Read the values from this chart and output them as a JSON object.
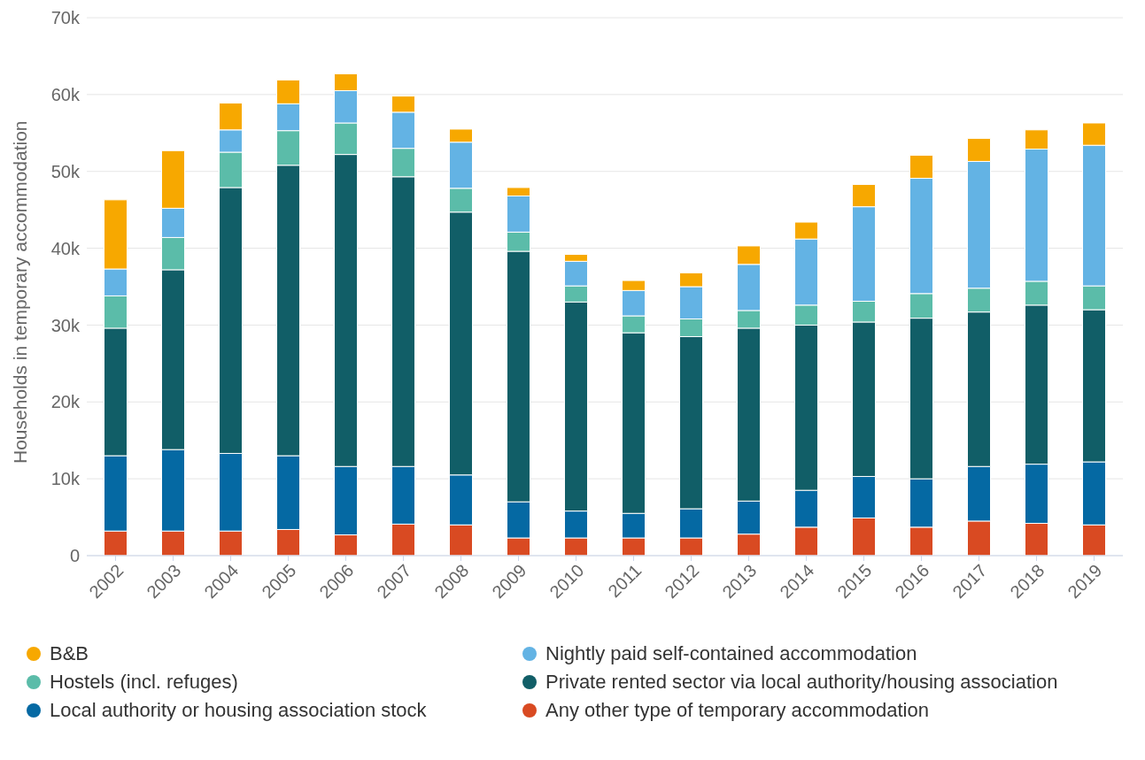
{
  "chart_data": {
    "type": "bar",
    "stacked": true,
    "ylabel": "Households in temporary accommodation",
    "categories": [
      "2002",
      "2003",
      "2004",
      "2005",
      "2006",
      "2007",
      "2008",
      "2009",
      "2010",
      "2011",
      "2012",
      "2013",
      "2014",
      "2015",
      "2016",
      "2017",
      "2018",
      "2019"
    ],
    "series": [
      {
        "name": "Any other type of temporary accommodation",
        "color": "#d94a22",
        "values": [
          3.2,
          3.2,
          3.2,
          3.4,
          2.7,
          4.1,
          4.0,
          2.3,
          2.3,
          2.3,
          2.3,
          2.8,
          3.7,
          4.9,
          3.7,
          4.5,
          4.2,
          4.0
        ]
      },
      {
        "name": "Local authority or housing association stock",
        "color": "#0569a3",
        "values": [
          9.8,
          10.6,
          10.1,
          9.6,
          8.9,
          7.5,
          6.5,
          4.7,
          3.5,
          3.2,
          3.8,
          4.3,
          4.8,
          5.4,
          6.3,
          7.1,
          7.7,
          8.2
        ]
      },
      {
        "name": "Private rented sector via local authority/housing association",
        "color": "#115e67",
        "values": [
          16.6,
          23.4,
          34.6,
          37.8,
          40.6,
          37.7,
          34.2,
          32.6,
          27.2,
          23.5,
          22.4,
          22.5,
          21.5,
          20.1,
          20.9,
          20.1,
          20.7,
          19.8
        ]
      },
      {
        "name": "Hostels (incl. refuges)",
        "color": "#5bbca9",
        "values": [
          4.2,
          4.2,
          4.6,
          4.5,
          4.1,
          3.7,
          3.1,
          2.5,
          2.1,
          2.2,
          2.3,
          2.3,
          2.6,
          2.7,
          3.2,
          3.1,
          3.1,
          3.1
        ]
      },
      {
        "name": "Nightly paid self-contained accommodation",
        "color": "#63b3e4",
        "values": [
          3.5,
          3.8,
          2.9,
          3.5,
          4.2,
          4.7,
          6.0,
          4.7,
          3.2,
          3.3,
          4.2,
          6.0,
          8.6,
          12.3,
          15.0,
          16.5,
          17.2,
          18.3
        ]
      },
      {
        "name": "B&B",
        "color": "#f7a800",
        "values": [
          9.0,
          7.5,
          3.5,
          3.1,
          2.2,
          2.1,
          1.7,
          1.1,
          0.9,
          1.3,
          1.8,
          2.4,
          2.2,
          2.9,
          3.0,
          3.0,
          2.5,
          2.9
        ]
      }
    ],
    "ylim": [
      0,
      70
    ],
    "yticks": [
      {
        "value": 0,
        "label": "0"
      },
      {
        "value": 10,
        "label": "10k"
      },
      {
        "value": 20,
        "label": "20k"
      },
      {
        "value": 30,
        "label": "30k"
      },
      {
        "value": 40,
        "label": "40k"
      },
      {
        "value": 50,
        "label": "50k"
      },
      {
        "value": 60,
        "label": "60k"
      },
      {
        "value": 70,
        "label": "70k"
      }
    ],
    "grid": "y",
    "legend": "bottom"
  }
}
